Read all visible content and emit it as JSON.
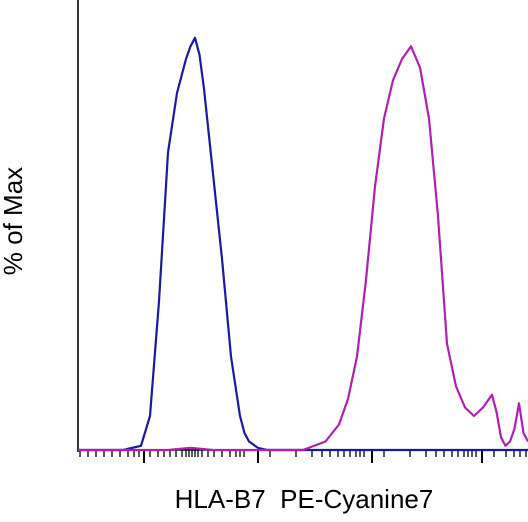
{
  "chart_data": {
    "type": "line",
    "title": "",
    "xlabel": "HLA-B7  PE-Cyanine7",
    "ylabel": "% of Max",
    "xscale": "log (flow cytometry biexponential)",
    "xlim": [
      0,
      100
    ],
    "ylim": [
      0,
      100
    ],
    "grid": false,
    "legend": "none",
    "series": [
      {
        "color": "#1a1aa0",
        "x": [
          0,
          10,
          14,
          16,
          18,
          20,
          22,
          23,
          24,
          25,
          26,
          27,
          28,
          29,
          30,
          32,
          34,
          36,
          37,
          38,
          40,
          42,
          44,
          100
        ],
        "y": [
          0,
          0,
          1,
          8,
          35,
          70,
          84,
          88,
          92,
          95,
          97,
          93,
          85,
          75,
          65,
          45,
          22,
          8,
          4,
          2,
          0.5,
          0,
          0,
          0
        ]
      },
      {
        "color": "#b020b0",
        "x": [
          0,
          20,
          25,
          30,
          50,
          55,
          58,
          60,
          62,
          64,
          66,
          68,
          70,
          72,
          74,
          76,
          78,
          80,
          81,
          82,
          84,
          86,
          88,
          90,
          92,
          93,
          94,
          95,
          96,
          97,
          98,
          99,
          100
        ],
        "y": [
          0,
          0,
          0.5,
          0,
          0,
          2,
          6,
          12,
          22,
          40,
          62,
          78,
          87,
          92,
          95,
          90,
          78,
          55,
          40,
          25,
          15,
          10,
          8,
          10,
          13,
          9,
          3,
          1,
          2,
          5,
          11,
          4,
          2
        ]
      }
    ]
  }
}
